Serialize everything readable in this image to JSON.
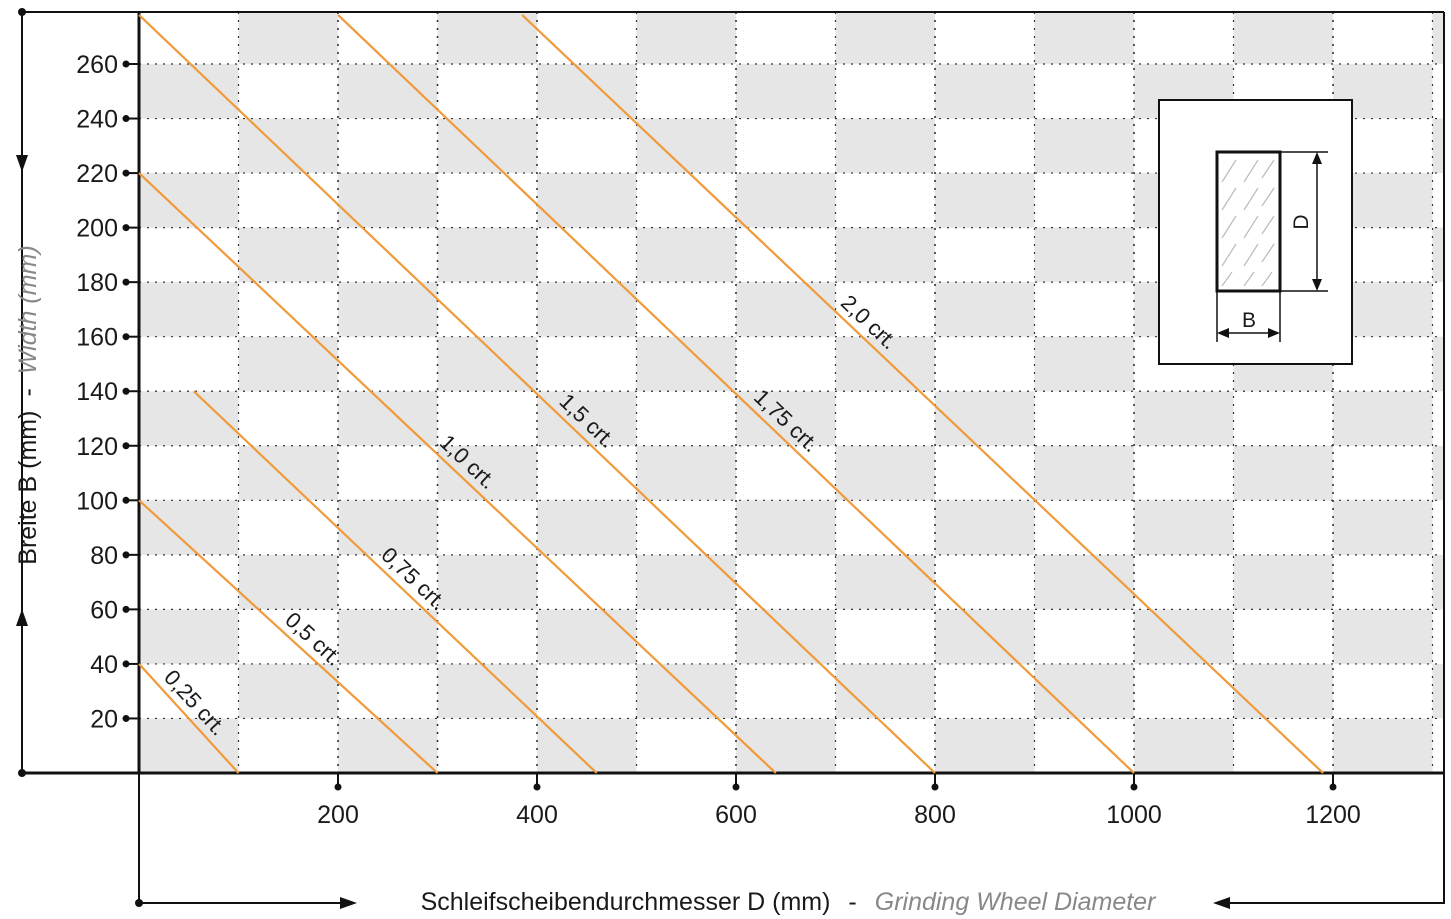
{
  "chart_data": {
    "type": "line",
    "x_axis": {
      "title_de": "Schleifscheibendurchmesser D (mm)",
      "separator": "-",
      "title_en": "Grinding Wheel Diameter",
      "ticks": [
        200,
        400,
        600,
        800,
        1000,
        1200
      ],
      "range": [
        0,
        1320
      ]
    },
    "y_axis": {
      "title_de": "Breite B (mm)",
      "separator": "-",
      "title_en": "Width (mm)",
      "ticks": [
        20,
        40,
        60,
        80,
        100,
        120,
        140,
        160,
        180,
        200,
        220,
        240,
        260
      ],
      "range": [
        0,
        278
      ]
    },
    "grid": true,
    "checker_background": true,
    "series": [
      {
        "name": "0,25 crt.",
        "x": [
          0,
          100
        ],
        "y": [
          40,
          0
        ]
      },
      {
        "name": "0,5 crt.",
        "x": [
          0,
          300
        ],
        "y": [
          100,
          0
        ]
      },
      {
        "name": "0,75 crt.",
        "x": [
          55,
          460
        ],
        "y": [
          140,
          0
        ]
      },
      {
        "name": "1,0 crt.",
        "x": [
          0,
          640
        ],
        "y": [
          220,
          0
        ]
      },
      {
        "name": "1,5 crt.",
        "x": [
          0,
          800
        ],
        "y": [
          278,
          0
        ]
      },
      {
        "name": "1,75 crt.",
        "x": [
          200,
          1000
        ],
        "y": [
          278,
          0
        ]
      },
      {
        "name": "2,0 crt.",
        "x": [
          385,
          1190
        ],
        "y": [
          278,
          0
        ]
      }
    ],
    "line_color": "#f09a3a",
    "inset_diagram": {
      "labels": [
        "D",
        "B"
      ]
    }
  }
}
